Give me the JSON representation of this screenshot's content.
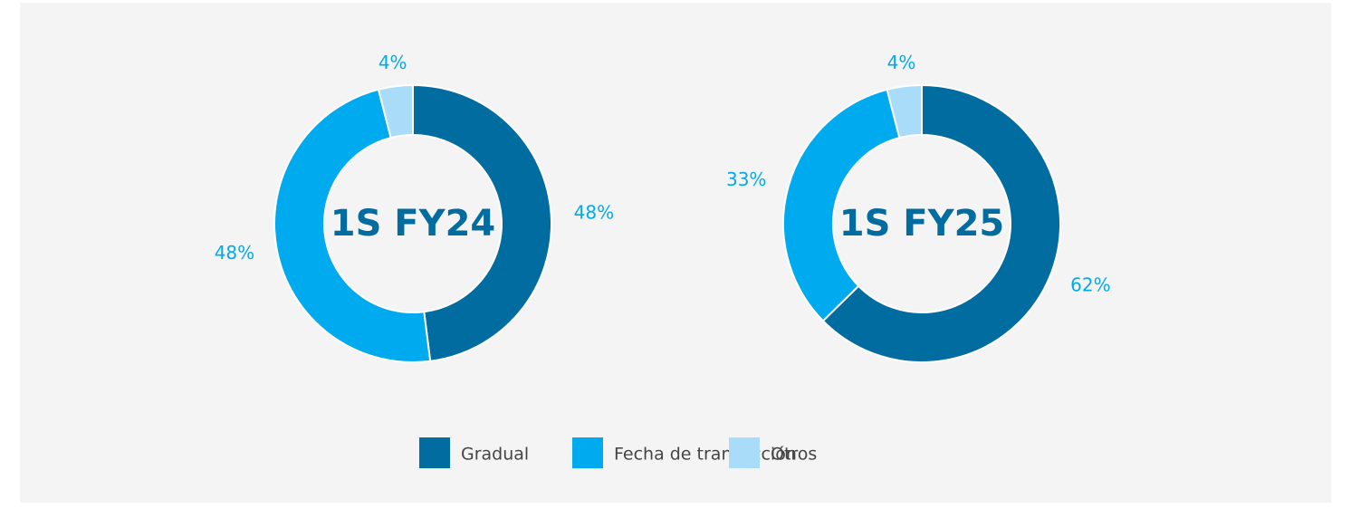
{
  "chart_data": [
    {
      "type": "pie",
      "title": "1S FY24",
      "categories": [
        "Gradual",
        "Fecha de transacción",
        "Otros"
      ],
      "values": [
        48,
        48,
        4
      ],
      "value_labels": [
        "48%",
        "48%",
        "4%"
      ],
      "colors": [
        "#006ca0",
        "#00aaee",
        "#a8dcf8"
      ]
    },
    {
      "type": "pie",
      "title": "1S FY25",
      "categories": [
        "Gradual",
        "Fecha de transacción",
        "Otros"
      ],
      "values": [
        62,
        33,
        4
      ],
      "value_labels": [
        "62%",
        "33%",
        "4%"
      ],
      "colors": [
        "#006ca0",
        "#00aaee",
        "#a8dcf8"
      ]
    }
  ]
}
